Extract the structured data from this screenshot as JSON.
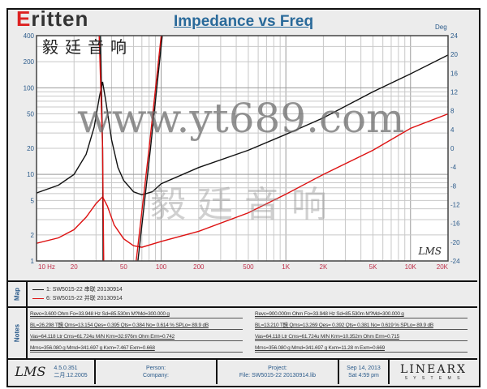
{
  "brand": {
    "logo": "ritten",
    "logo_initial": "E",
    "chinese": "毅廷音响"
  },
  "chart_data": {
    "type": "line",
    "title": "Impedance vs Freq",
    "xscale": "log",
    "xlim": [
      10,
      20000
    ],
    "x_ticks": [
      {
        "v": 10,
        "label": "10  Hz"
      },
      {
        "v": 20,
        "label": "20"
      },
      {
        "v": 50,
        "label": "50"
      },
      {
        "v": 100,
        "label": "100"
      },
      {
        "v": 200,
        "label": "200"
      },
      {
        "v": 500,
        "label": "500"
      },
      {
        "v": 1000,
        "label": "1K"
      },
      {
        "v": 2000,
        "label": "2K"
      },
      {
        "v": 5000,
        "label": "5K"
      },
      {
        "v": 10000,
        "label": "10K"
      },
      {
        "v": 20000,
        "label": "20K"
      }
    ],
    "yscale": "log",
    "ylim": [
      1,
      400
    ],
    "y_ticks": [
      {
        "v": 1,
        "label": "1"
      },
      {
        "v": 2,
        "label": "2"
      },
      {
        "v": 5,
        "label": "5"
      },
      {
        "v": 10,
        "label": "10"
      },
      {
        "v": 20,
        "label": "20"
      },
      {
        "v": 50,
        "label": "50"
      },
      {
        "v": 100,
        "label": "100"
      },
      {
        "v": 200,
        "label": "200"
      },
      {
        "v": 400,
        "label": "400"
      }
    ],
    "y2label": "Deg",
    "y2lim": [
      -24,
      24
    ],
    "y2_ticks": [
      "24",
      "20",
      "16",
      "12",
      "8",
      "4",
      "0",
      "-4",
      "-8",
      "-12",
      "-16",
      "-20",
      "-24"
    ],
    "grid": true,
    "series": [
      {
        "name": "1: SW5015-22  串联 20130914",
        "color": "#111111",
        "kind": "impedance",
        "points": [
          [
            10,
            6.1
          ],
          [
            15,
            7.5
          ],
          [
            20,
            10
          ],
          [
            25,
            17
          ],
          [
            29,
            35
          ],
          [
            32,
            80
          ],
          [
            33.9,
            117
          ],
          [
            36,
            70
          ],
          [
            40,
            25
          ],
          [
            45,
            12
          ],
          [
            50,
            8.5
          ],
          [
            60,
            6.3
          ],
          [
            70,
            5.8
          ],
          [
            85,
            6.3
          ],
          [
            100,
            7.8
          ],
          [
            200,
            12
          ],
          [
            500,
            19
          ],
          [
            1000,
            29
          ],
          [
            2000,
            45
          ],
          [
            5000,
            90
          ],
          [
            10000,
            145
          ],
          [
            20000,
            239
          ]
        ]
      },
      {
        "name": "6: SW5015-22  并联 20130914",
        "color": "#dd1111",
        "kind": "impedance",
        "points": [
          [
            10,
            1.6
          ],
          [
            15,
            1.85
          ],
          [
            20,
            2.3
          ],
          [
            25,
            3.2
          ],
          [
            30,
            4.6
          ],
          [
            33.9,
            5.5
          ],
          [
            37,
            4.3
          ],
          [
            42,
            2.6
          ],
          [
            50,
            1.8
          ],
          [
            60,
            1.5
          ],
          [
            70,
            1.44
          ],
          [
            100,
            1.68
          ],
          [
            200,
            2.2
          ],
          [
            500,
            3.6
          ],
          [
            1000,
            5.9
          ],
          [
            2000,
            10
          ],
          [
            5000,
            19
          ],
          [
            10000,
            34
          ],
          [
            20000,
            50
          ]
        ]
      },
      {
        "color": "#111111",
        "kind": "phase",
        "points": [
          [
            32.6,
            24
          ],
          [
            33.9,
            0
          ],
          [
            34.2,
            -24
          ]
        ]
      },
      {
        "color": "#dd1111",
        "kind": "phase",
        "points": [
          [
            31.8,
            24
          ],
          [
            33.9,
            0
          ],
          [
            34.6,
            -24
          ]
        ]
      },
      {
        "color": "#dd1111",
        "kind": "phase",
        "points": [
          [
            63,
            -24
          ],
          [
            80,
            0
          ],
          [
            100,
            24
          ]
        ]
      },
      {
        "color": "#111111",
        "kind": "phase",
        "points": [
          [
            65,
            -24
          ],
          [
            82,
            0
          ],
          [
            102,
            24
          ]
        ]
      }
    ],
    "watermark": "LMS"
  },
  "map": {
    "label": "Map"
  },
  "notes": {
    "label": "Notes",
    "left": [
      "Revc=3.600 Ohm  Fo=33.948 Hz  Sd=85.530m M?Md=300.000 g",
      "BL=26.298 T醗  Qms=13.154  Qes= 0.395  Qts= 0.384  No= 0.614 %  SPLo= 89.9 dB",
      "Vas=64.118 Ltr  Cms=61.724u M/N  Krm=32.976m Ohm  Erm=0.742",
      "Mms=356.080 g  Mmd=341.697 g  Kxm=7.467  Exm=0.668"
    ],
    "right": [
      "Revc=900.000m Ohm  Fo=33.948 Hz  Sd=85.530m M?Md=300.000 g",
      "BL=13.210 T醗  Qms=13.269  Qes= 0.392  Qts= 0.381  No= 0.619 %  SPLo= 89.9 dB",
      "Vas=64.118 Ltr  Cms=61.724u M/N  Krm=10.352m Ohm  Erm=0.715",
      "Mms=356.080 g  Mmd=341.697 g  Kxm=11.28 m  Exm=0.669"
    ]
  },
  "footer": {
    "lms": "LMS",
    "version": "4.5.0.351",
    "build": "二月.12.2005",
    "person": "Person:",
    "company": "Company:",
    "project": "Project:",
    "file": "File: SW5015-22  20130914.lib",
    "date": "Sep 14, 2013",
    "time": "Sat  4:59 pm",
    "brand": "LINEARX",
    "brand_sub": "S Y S T E M S"
  },
  "watermark_url": "www.yt689.com",
  "watermark_cn": "毅廷音响"
}
